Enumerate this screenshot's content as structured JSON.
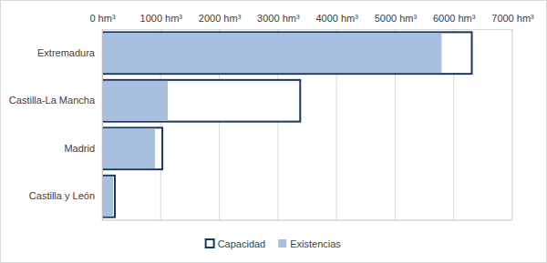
{
  "chart_data": {
    "type": "bar",
    "orientation": "horizontal",
    "grid": true,
    "legend": "bottom",
    "categories": [
      "Extremadura",
      "Castilla-La Mancha",
      "Madrid",
      "Castilla y León"
    ],
    "series": [
      {
        "name": "Capacidad",
        "color": "#17375e",
        "values": [
          6308,
          3380,
          1028,
          218
        ]
      },
      {
        "name": "Existencias",
        "color": "#a9bfdf",
        "values": [
          5794,
          1121,
          903,
          187
        ]
      }
    ],
    "xlim": [
      0,
      7000
    ],
    "xticks": [
      {
        "value": 0,
        "label": "0 hm³"
      },
      {
        "value": 1000,
        "label": "1000 hm³"
      },
      {
        "value": 2000,
        "label": "2000 hm³"
      },
      {
        "value": 3000,
        "label": "3000 hm³"
      },
      {
        "value": 4000,
        "label": "4000 hm³"
      },
      {
        "value": 5000,
        "label": "5000 hm³"
      },
      {
        "value": 6000,
        "label": "6000 hm³"
      },
      {
        "value": 7000,
        "label": "7000 hm³"
      }
    ]
  }
}
